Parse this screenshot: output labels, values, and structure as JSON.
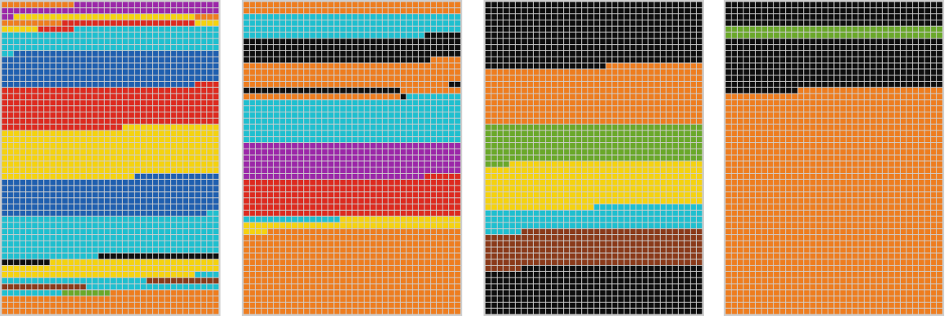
{
  "colors": {
    "purple": "#9b27a8",
    "orange": "#ee7d1f",
    "yellow": "#f5d20f",
    "red": "#dd2a1f",
    "cyan": "#1fbfcf",
    "blue": "#1f5faf",
    "black": "#0e0e0e",
    "green": "#6aa82a",
    "brown": "#8a3a1a",
    "grid_line": "#cfcfcf"
  },
  "chart_data": [
    {
      "type": "waffle",
      "columns": 36,
      "rows": 51,
      "segments": [
        {
          "color": "orange",
          "count": 12
        },
        {
          "color": "purple",
          "count": 62
        },
        {
          "color": "yellow",
          "count": 30
        },
        {
          "color": "orange",
          "count": 14
        },
        {
          "color": "red",
          "count": 22
        },
        {
          "color": "yellow",
          "count": 10
        },
        {
          "color": "red",
          "count": 6
        },
        {
          "color": "cyan",
          "count": 134
        },
        {
          "color": "blue",
          "count": 210
        },
        {
          "color": "red",
          "count": 240
        },
        {
          "color": "yellow",
          "count": 290
        },
        {
          "color": "blue",
          "count": 228
        },
        {
          "color": "cyan",
          "count": 234
        },
        {
          "color": "black",
          "count": 28
        },
        {
          "color": "yellow",
          "count": 96
        },
        {
          "color": "cyan",
          "count": 28
        },
        {
          "color": "brown",
          "count": 26
        },
        {
          "color": "cyan",
          "count": 32
        },
        {
          "color": "green",
          "count": 8
        },
        {
          "color": "orange",
          "count": 76
        }
      ]
    },
    {
      "type": "waffle",
      "columns": 36,
      "rows": 51,
      "segments": [
        {
          "color": "orange",
          "count": 72
        },
        {
          "color": "cyan",
          "count": 138
        },
        {
          "color": "black",
          "count": 145
        },
        {
          "color": "orange",
          "count": 147
        },
        {
          "color": "black",
          "count": 28
        },
        {
          "color": "orange",
          "count": 36
        },
        {
          "color": "black",
          "count": 1
        },
        {
          "color": "cyan",
          "count": 261
        },
        {
          "color": "purple",
          "count": 210
        },
        {
          "color": "red",
          "count": 222
        },
        {
          "color": "cyan",
          "count": 16
        },
        {
          "color": "yellow",
          "count": 60
        },
        {
          "color": "orange",
          "count": 500
        }
      ]
    },
    {
      "type": "waffle",
      "columns": 36,
      "rows": 51,
      "segments": [
        {
          "color": "black",
          "count": 380
        },
        {
          "color": "orange",
          "count": 340
        },
        {
          "color": "green",
          "count": 220
        },
        {
          "color": "yellow",
          "count": 266
        },
        {
          "color": "cyan",
          "count": 132
        },
        {
          "color": "brown",
          "count": 216
        },
        {
          "color": "black",
          "count": 278
        }
      ]
    },
    {
      "type": "waffle",
      "columns": 36,
      "rows": 51,
      "segments": [
        {
          "color": "black",
          "count": 144
        },
        {
          "color": "green",
          "count": 72
        },
        {
          "color": "black",
          "count": 300
        },
        {
          "color": "orange",
          "count": 1320
        }
      ]
    }
  ]
}
